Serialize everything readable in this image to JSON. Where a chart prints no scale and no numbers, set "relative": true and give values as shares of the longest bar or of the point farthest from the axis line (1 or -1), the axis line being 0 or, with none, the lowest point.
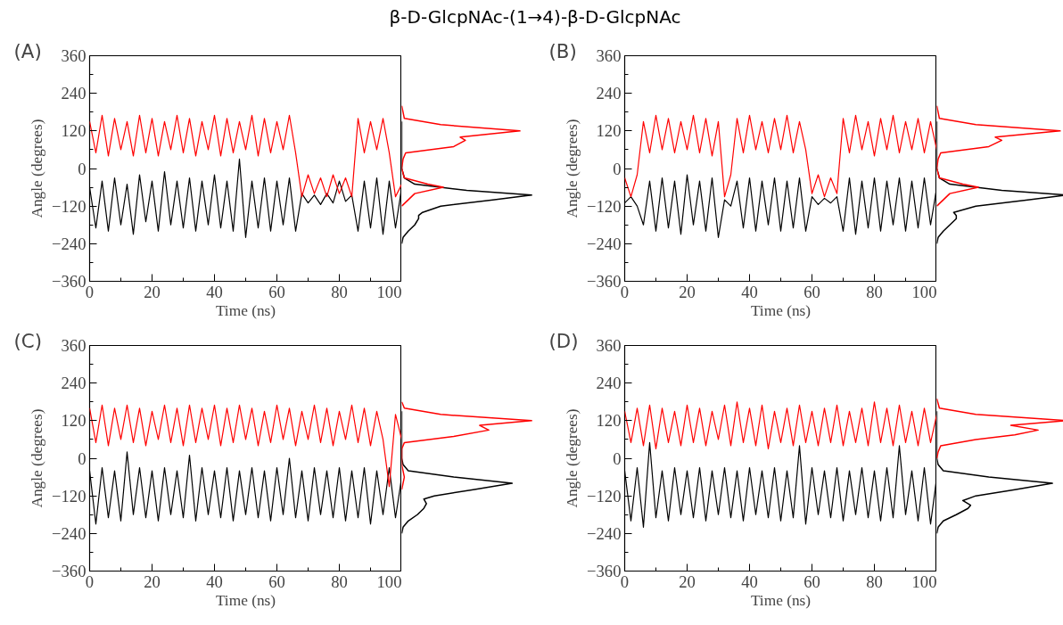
{
  "chart_data": [
    {
      "type": "line",
      "title": "β-D-GlcpNAc-(1→4)-β-D-GlcpNAc",
      "annotations": [
        "(A)"
      ],
      "xlabel": "Time (ns)",
      "ylabel": "Angle (degrees)",
      "xlim": [
        0,
        100
      ],
      "xticks": [
        0,
        20,
        40,
        60,
        80,
        100
      ],
      "ylim": [
        -360,
        360
      ],
      "yticks": [
        -360,
        -240,
        -120,
        0,
        120,
        240,
        360
      ],
      "grid": false,
      "x": [
        0,
        2,
        4,
        6,
        8,
        10,
        12,
        14,
        16,
        18,
        20,
        22,
        24,
        26,
        28,
        30,
        32,
        34,
        36,
        38,
        40,
        42,
        44,
        46,
        48,
        50,
        52,
        54,
        56,
        58,
        60,
        62,
        64,
        66,
        68,
        70,
        72,
        74,
        76,
        78,
        80,
        82,
        84,
        86,
        88,
        90,
        92,
        94,
        96,
        98,
        100
      ],
      "series": [
        {
          "color": "#000000",
          "values": [
            -60,
            -190,
            -40,
            -200,
            -30,
            -180,
            -50,
            -210,
            -20,
            -170,
            -40,
            -200,
            -10,
            -180,
            -40,
            -190,
            -30,
            -200,
            -40,
            -180,
            -20,
            -190,
            -40,
            -200,
            30,
            -220,
            -40,
            -190,
            -30,
            -200,
            -40,
            -180,
            -30,
            -200,
            -80,
            -110,
            -85,
            -115,
            -80,
            -110,
            -40,
            -105,
            -85,
            -200,
            -40,
            -190,
            -30,
            -210,
            -40,
            -190,
            -60
          ]
        },
        {
          "color": "#ff0000",
          "values": [
            150,
            50,
            170,
            40,
            160,
            60,
            150,
            40,
            170,
            50,
            160,
            40,
            150,
            60,
            170,
            50,
            160,
            40,
            150,
            60,
            170,
            40,
            160,
            50,
            150,
            60,
            170,
            40,
            160,
            50,
            150,
            60,
            170,
            50,
            -90,
            -20,
            -80,
            -30,
            -90,
            -20,
            -80,
            -30,
            -90,
            160,
            50,
            150,
            60,
            160,
            50,
            -90,
            -50
          ]
        }
      ]
    },
    {
      "type": "line",
      "orientation": "horizontal",
      "relative": true,
      "ylim": [
        -360,
        360
      ],
      "tick_labels": false,
      "series": [
        {
          "color": "#000000",
          "x": [
            -240,
            -220,
            -200,
            -180,
            -160,
            -150,
            -140,
            -120,
            -100,
            -85,
            -70,
            -50,
            -30,
            0,
            150
          ],
          "values": [
            0,
            0.01,
            0.05,
            0.1,
            0.13,
            0.13,
            0.16,
            0.3,
            0.7,
            1,
            0.5,
            0.1,
            0.02,
            0,
            0
          ]
        },
        {
          "color": "#ff0000",
          "x": [
            -120,
            -100,
            -80,
            -60,
            -50,
            -30,
            0,
            30,
            50,
            70,
            90,
            100,
            120,
            140,
            160,
            200
          ],
          "values": [
            0,
            0.05,
            0.1,
            0.32,
            0.2,
            0.02,
            0,
            0.01,
            0.03,
            0.4,
            0.49,
            0.45,
            0.91,
            0.3,
            0.02,
            0
          ]
        }
      ]
    },
    {
      "type": "line",
      "annotations": [
        "(B)"
      ],
      "xlabel": "Time (ns)",
      "ylabel": "Angle (degrees)",
      "xlim": [
        0,
        100
      ],
      "xticks": [
        0,
        20,
        40,
        60,
        80,
        100
      ],
      "ylim": [
        -360,
        360
      ],
      "yticks": [
        -360,
        -240,
        -120,
        0,
        120,
        240,
        360
      ],
      "grid": false,
      "x": [
        0,
        2,
        4,
        6,
        8,
        10,
        12,
        14,
        16,
        18,
        20,
        22,
        24,
        26,
        28,
        30,
        32,
        34,
        36,
        38,
        40,
        42,
        44,
        46,
        48,
        50,
        52,
        54,
        56,
        58,
        60,
        62,
        64,
        66,
        68,
        70,
        72,
        74,
        76,
        78,
        80,
        82,
        84,
        86,
        88,
        90,
        92,
        94,
        96,
        98,
        100
      ],
      "series": [
        {
          "color": "#000000",
          "values": [
            -110,
            -90,
            -120,
            -180,
            -40,
            -200,
            -30,
            -190,
            -40,
            -210,
            -20,
            -180,
            -40,
            -200,
            -30,
            -220,
            -100,
            -120,
            -40,
            -190,
            -30,
            -200,
            -40,
            -180,
            -30,
            -200,
            -40,
            -190,
            -30,
            -200,
            -90,
            -115,
            -95,
            -110,
            -90,
            -200,
            -30,
            -210,
            -40,
            -190,
            -30,
            -200,
            -40,
            -180,
            -30,
            -200,
            -40,
            -190,
            -30,
            -180,
            -60
          ]
        },
        {
          "color": "#ff0000",
          "values": [
            -30,
            -90,
            -20,
            150,
            50,
            170,
            60,
            160,
            50,
            150,
            60,
            170,
            50,
            160,
            40,
            150,
            -90,
            -20,
            160,
            50,
            170,
            60,
            150,
            50,
            160,
            60,
            170,
            50,
            150,
            60,
            -80,
            -20,
            -90,
            -30,
            -80,
            160,
            50,
            170,
            60,
            150,
            40,
            160,
            60,
            170,
            50,
            150,
            60,
            160,
            50,
            150,
            60
          ]
        }
      ]
    },
    {
      "type": "line",
      "orientation": "horizontal",
      "relative": true,
      "ylim": [
        -360,
        360
      ],
      "tick_labels": false,
      "series": [
        {
          "color": "#000000",
          "x": [
            -240,
            -220,
            -200,
            -180,
            -160,
            -150,
            -140,
            -120,
            -100,
            -85,
            -70,
            -50,
            -30,
            0,
            150
          ],
          "values": [
            0,
            0.01,
            0.05,
            0.1,
            0.15,
            0.15,
            0.13,
            0.3,
            0.7,
            1,
            0.5,
            0.1,
            0.02,
            0,
            0
          ]
        },
        {
          "color": "#ff0000",
          "x": [
            -120,
            -100,
            -80,
            -60,
            -50,
            -30,
            0,
            30,
            50,
            70,
            90,
            100,
            120,
            140,
            160,
            200
          ],
          "values": [
            0,
            0.05,
            0.1,
            0.32,
            0.2,
            0.02,
            0,
            0.01,
            0.03,
            0.4,
            0.5,
            0.45,
            0.95,
            0.3,
            0.02,
            0
          ]
        }
      ]
    },
    {
      "type": "line",
      "annotations": [
        "(C)"
      ],
      "xlabel": "Time (ns)",
      "ylabel": "Angle (degrees)",
      "xlim": [
        0,
        100
      ],
      "xticks": [
        0,
        20,
        40,
        60,
        80,
        100
      ],
      "ylim": [
        -360,
        360
      ],
      "yticks": [
        -360,
        -240,
        -120,
        0,
        120,
        240,
        360
      ],
      "grid": false,
      "x": [
        0,
        2,
        4,
        6,
        8,
        10,
        12,
        14,
        16,
        18,
        20,
        22,
        24,
        26,
        28,
        30,
        32,
        34,
        36,
        38,
        40,
        42,
        44,
        46,
        48,
        50,
        52,
        54,
        56,
        58,
        60,
        62,
        64,
        66,
        68,
        70,
        72,
        74,
        76,
        78,
        80,
        82,
        84,
        86,
        88,
        90,
        92,
        94,
        96,
        98,
        100
      ],
      "series": [
        {
          "color": "#000000",
          "values": [
            -40,
            -210,
            -30,
            -190,
            -40,
            -200,
            20,
            -180,
            -30,
            -190,
            -40,
            -200,
            -30,
            -180,
            -40,
            -190,
            10,
            -200,
            -30,
            -180,
            -40,
            -190,
            -30,
            -200,
            -40,
            -180,
            -30,
            -190,
            -40,
            -200,
            -30,
            -180,
            0,
            -190,
            -40,
            -200,
            -30,
            -180,
            -40,
            -190,
            -30,
            -200,
            -40,
            -190,
            -30,
            -210,
            -40,
            -180,
            -30,
            -190,
            -60
          ]
        },
        {
          "color": "#ff0000",
          "values": [
            160,
            50,
            170,
            40,
            160,
            60,
            170,
            50,
            160,
            40,
            150,
            60,
            170,
            50,
            160,
            40,
            170,
            50,
            160,
            60,
            170,
            40,
            160,
            50,
            170,
            60,
            160,
            40,
            150,
            50,
            170,
            60,
            160,
            40,
            150,
            60,
            170,
            50,
            160,
            40,
            150,
            60,
            170,
            50,
            160,
            40,
            150,
            60,
            -90,
            140,
            60
          ]
        }
      ]
    },
    {
      "type": "line",
      "orientation": "horizontal",
      "relative": true,
      "ylim": [
        -360,
        360
      ],
      "tick_labels": false,
      "series": [
        {
          "color": "#000000",
          "x": [
            -240,
            -220,
            -200,
            -180,
            -160,
            -145,
            -130,
            -120,
            -100,
            -80,
            -60,
            -40,
            -20,
            0,
            150
          ],
          "values": [
            0,
            0.01,
            0.05,
            0.12,
            0.17,
            0.19,
            0.17,
            0.25,
            0.55,
            0.85,
            0.4,
            0.05,
            0.01,
            0,
            0
          ]
        },
        {
          "color": "#ff0000",
          "x": [
            -100,
            -80,
            -60,
            -40,
            -20,
            0,
            30,
            50,
            70,
            90,
            105,
            120,
            140,
            160,
            180
          ],
          "values": [
            0,
            0.01,
            0.02,
            0.01,
            0,
            0,
            0,
            0.02,
            0.4,
            0.67,
            0.6,
            1,
            0.3,
            0.02,
            0
          ]
        }
      ]
    },
    {
      "type": "line",
      "annotations": [
        "(D)"
      ],
      "xlabel": "Time (ns)",
      "ylabel": "Angle (degrees)",
      "xlim": [
        0,
        100
      ],
      "xticks": [
        0,
        20,
        40,
        60,
        80,
        100
      ],
      "ylim": [
        -360,
        360
      ],
      "yticks": [
        -360,
        -240,
        -120,
        0,
        120,
        240,
        360
      ],
      "grid": false,
      "x": [
        0,
        2,
        4,
        6,
        8,
        10,
        12,
        14,
        16,
        18,
        20,
        22,
        24,
        26,
        28,
        30,
        32,
        34,
        36,
        38,
        40,
        42,
        44,
        46,
        48,
        50,
        52,
        54,
        56,
        58,
        60,
        62,
        64,
        66,
        68,
        70,
        72,
        74,
        76,
        78,
        80,
        82,
        84,
        86,
        88,
        90,
        92,
        94,
        96,
        98,
        100
      ],
      "series": [
        {
          "color": "#000000",
          "values": [
            -40,
            -200,
            -30,
            -220,
            50,
            -190,
            -40,
            -200,
            -30,
            -180,
            -40,
            -190,
            -30,
            -200,
            -40,
            -180,
            -30,
            -190,
            -40,
            -200,
            -30,
            -180,
            -40,
            -190,
            -30,
            -200,
            -40,
            -190,
            40,
            -210,
            -30,
            -180,
            -40,
            -190,
            -30,
            -200,
            -40,
            -180,
            -30,
            -190,
            -40,
            -200,
            -30,
            -190,
            40,
            -180,
            -40,
            -200,
            -30,
            -210,
            -60
          ]
        },
        {
          "color": "#ff0000",
          "values": [
            150,
            50,
            160,
            40,
            170,
            30,
            160,
            50,
            150,
            40,
            170,
            50,
            160,
            40,
            150,
            60,
            170,
            40,
            180,
            50,
            160,
            40,
            170,
            30,
            150,
            50,
            160,
            40,
            170,
            50,
            150,
            40,
            160,
            50,
            170,
            40,
            150,
            50,
            160,
            40,
            180,
            50,
            160,
            40,
            170,
            50,
            150,
            40,
            160,
            50,
            140
          ]
        }
      ]
    },
    {
      "type": "line",
      "orientation": "horizontal",
      "relative": true,
      "ylim": [
        -360,
        360
      ],
      "tick_labels": false,
      "series": [
        {
          "color": "#000000",
          "x": [
            -240,
            -220,
            -200,
            -180,
            -160,
            -150,
            -135,
            -120,
            -100,
            -80,
            -60,
            -40,
            -20,
            0,
            150
          ],
          "values": [
            0,
            0.01,
            0.05,
            0.15,
            0.24,
            0.26,
            0.2,
            0.3,
            0.6,
            0.89,
            0.4,
            0.05,
            0.01,
            0,
            0
          ]
        },
        {
          "color": "#ff0000",
          "x": [
            0,
            20,
            40,
            60,
            75,
            90,
            105,
            120,
            140,
            160,
            190
          ],
          "values": [
            0,
            0.01,
            0.03,
            0.3,
            0.6,
            0.78,
            0.57,
            1,
            0.3,
            0.02,
            0
          ]
        }
      ]
    }
  ]
}
